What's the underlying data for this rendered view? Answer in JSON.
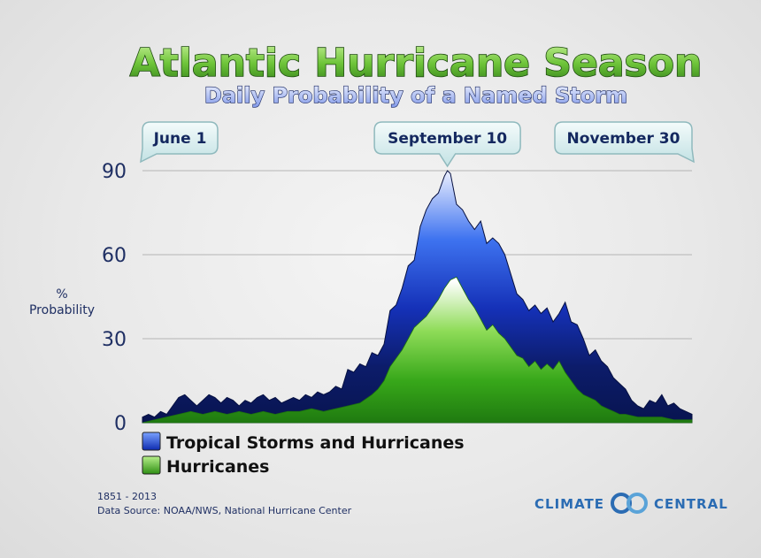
{
  "chart_data": {
    "type": "area",
    "title": "Atlantic Hurricane Season",
    "subtitle": "Daily Probability of a Named Storm",
    "ylabel": "% Probability",
    "yticks": [
      0,
      30,
      60,
      90
    ],
    "ylim": [
      0,
      95
    ],
    "x_range_days": [
      1,
      183
    ],
    "x_annotations": [
      {
        "label": "June 1",
        "day": 1
      },
      {
        "label": "September 10",
        "day": 102
      },
      {
        "label": "November 30",
        "day": 183
      }
    ],
    "series": [
      {
        "name": "Tropical Storms and Hurricanes",
        "color": "#1a4fd6",
        "points": [
          [
            1,
            2
          ],
          [
            3,
            3
          ],
          [
            5,
            2
          ],
          [
            7,
            4
          ],
          [
            9,
            3
          ],
          [
            11,
            6
          ],
          [
            13,
            9
          ],
          [
            15,
            10
          ],
          [
            17,
            8
          ],
          [
            19,
            6
          ],
          [
            21,
            8
          ],
          [
            23,
            10
          ],
          [
            25,
            9
          ],
          [
            27,
            7
          ],
          [
            29,
            9
          ],
          [
            31,
            8
          ],
          [
            33,
            6
          ],
          [
            35,
            8
          ],
          [
            37,
            7
          ],
          [
            39,
            9
          ],
          [
            41,
            10
          ],
          [
            43,
            8
          ],
          [
            45,
            9
          ],
          [
            47,
            7
          ],
          [
            49,
            8
          ],
          [
            51,
            9
          ],
          [
            53,
            8
          ],
          [
            55,
            10
          ],
          [
            57,
            9
          ],
          [
            59,
            11
          ],
          [
            61,
            10
          ],
          [
            63,
            11
          ],
          [
            65,
            13
          ],
          [
            67,
            12
          ],
          [
            69,
            19
          ],
          [
            71,
            18
          ],
          [
            73,
            21
          ],
          [
            75,
            20
          ],
          [
            77,
            25
          ],
          [
            79,
            24
          ],
          [
            81,
            28
          ],
          [
            83,
            40
          ],
          [
            85,
            42
          ],
          [
            87,
            48
          ],
          [
            89,
            56
          ],
          [
            91,
            58
          ],
          [
            93,
            70
          ],
          [
            95,
            76
          ],
          [
            97,
            80
          ],
          [
            99,
            82
          ],
          [
            101,
            88
          ],
          [
            102,
            90
          ],
          [
            103,
            89
          ],
          [
            105,
            78
          ],
          [
            107,
            76
          ],
          [
            109,
            72
          ],
          [
            111,
            69
          ],
          [
            113,
            72
          ],
          [
            115,
            64
          ],
          [
            117,
            66
          ],
          [
            119,
            64
          ],
          [
            121,
            60
          ],
          [
            123,
            53
          ],
          [
            125,
            46
          ],
          [
            127,
            44
          ],
          [
            129,
            40
          ],
          [
            131,
            42
          ],
          [
            133,
            39
          ],
          [
            135,
            41
          ],
          [
            137,
            36
          ],
          [
            139,
            39
          ],
          [
            141,
            43
          ],
          [
            143,
            36
          ],
          [
            145,
            35
          ],
          [
            147,
            30
          ],
          [
            149,
            24
          ],
          [
            151,
            26
          ],
          [
            153,
            22
          ],
          [
            155,
            20
          ],
          [
            157,
            16
          ],
          [
            159,
            14
          ],
          [
            161,
            12
          ],
          [
            163,
            8
          ],
          [
            165,
            6
          ],
          [
            167,
            5
          ],
          [
            169,
            8
          ],
          [
            171,
            7
          ],
          [
            173,
            10
          ],
          [
            175,
            6
          ],
          [
            177,
            7
          ],
          [
            179,
            5
          ],
          [
            181,
            4
          ],
          [
            183,
            3
          ]
        ]
      },
      {
        "name": "Hurricanes",
        "color": "#3cb21f",
        "points": [
          [
            1,
            0
          ],
          [
            5,
            1
          ],
          [
            9,
            2
          ],
          [
            13,
            3
          ],
          [
            17,
            4
          ],
          [
            21,
            3
          ],
          [
            25,
            4
          ],
          [
            29,
            3
          ],
          [
            33,
            4
          ],
          [
            37,
            3
          ],
          [
            41,
            4
          ],
          [
            45,
            3
          ],
          [
            49,
            4
          ],
          [
            53,
            4
          ],
          [
            57,
            5
          ],
          [
            61,
            4
          ],
          [
            65,
            5
          ],
          [
            69,
            6
          ],
          [
            73,
            7
          ],
          [
            77,
            10
          ],
          [
            79,
            12
          ],
          [
            81,
            15
          ],
          [
            83,
            20
          ],
          [
            85,
            23
          ],
          [
            87,
            26
          ],
          [
            89,
            30
          ],
          [
            91,
            34
          ],
          [
            93,
            36
          ],
          [
            95,
            38
          ],
          [
            97,
            41
          ],
          [
            99,
            44
          ],
          [
            101,
            48
          ],
          [
            103,
            51
          ],
          [
            105,
            52
          ],
          [
            107,
            48
          ],
          [
            109,
            44
          ],
          [
            111,
            41
          ],
          [
            113,
            37
          ],
          [
            115,
            33
          ],
          [
            117,
            35
          ],
          [
            119,
            32
          ],
          [
            121,
            30
          ],
          [
            123,
            27
          ],
          [
            125,
            24
          ],
          [
            127,
            23
          ],
          [
            129,
            20
          ],
          [
            131,
            22
          ],
          [
            133,
            19
          ],
          [
            135,
            21
          ],
          [
            137,
            19
          ],
          [
            139,
            22
          ],
          [
            141,
            18
          ],
          [
            143,
            15
          ],
          [
            145,
            12
          ],
          [
            147,
            10
          ],
          [
            149,
            9
          ],
          [
            151,
            8
          ],
          [
            153,
            6
          ],
          [
            155,
            5
          ],
          [
            157,
            4
          ],
          [
            159,
            3
          ],
          [
            161,
            3
          ],
          [
            165,
            2
          ],
          [
            169,
            2
          ],
          [
            173,
            2
          ],
          [
            177,
            1
          ],
          [
            183,
            1
          ]
        ]
      }
    ],
    "legend_placement": "bottom-left"
  },
  "legend": [
    {
      "label": "Tropical Storms and Hurricanes",
      "color": "#1a4fd6"
    },
    {
      "label": "Hurricanes",
      "color": "#3cb21f"
    }
  ],
  "footer": {
    "years": "1851 - 2013",
    "source": "Data Source: NOAA/NWS, National Hurricane Center"
  },
  "logo": {
    "left": "CLIMATE",
    "right": "CENTRAL"
  }
}
